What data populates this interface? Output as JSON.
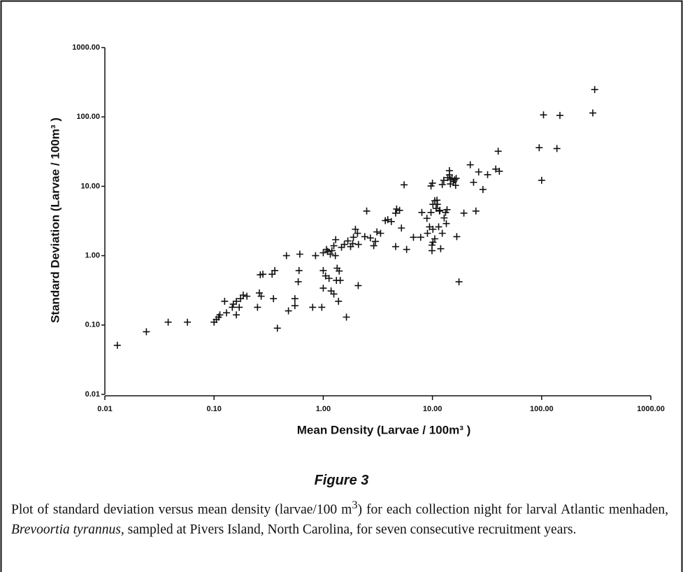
{
  "chart_data": {
    "type": "scatter",
    "x_label": "Mean Density (Larvae / 100m³ )",
    "y_label": "Standard Deviation (Larvae / 100m³ )",
    "xscale": "log",
    "yscale": "log",
    "xlim": [
      0.01,
      1000
    ],
    "ylim": [
      0.01,
      1000
    ],
    "xticks": [
      {
        "value": 0.01,
        "label": "0.01"
      },
      {
        "value": 0.1,
        "label": "0.10"
      },
      {
        "value": 1,
        "label": "1.00"
      },
      {
        "value": 10,
        "label": "10.00"
      },
      {
        "value": 100,
        "label": "100.00"
      },
      {
        "value": 1000,
        "label": "1000.00"
      }
    ],
    "yticks": [
      {
        "value": 0.01,
        "label": "0.01"
      },
      {
        "value": 0.1,
        "label": "0.10"
      },
      {
        "value": 1,
        "label": "1.00"
      },
      {
        "value": 10,
        "label": "10.00"
      },
      {
        "value": 100,
        "label": "100.00"
      },
      {
        "value": 1000,
        "label": "1000.00"
      }
    ],
    "color": "#111111",
    "x": [
      0.013,
      0.024,
      0.038,
      0.057,
      0.1,
      0.105,
      0.11,
      0.113,
      0.125,
      0.13,
      0.147,
      0.15,
      0.16,
      0.17,
      0.175,
      0.185,
      0.16,
      0.2,
      0.25,
      0.26,
      0.27,
      0.265,
      0.28,
      0.34,
      0.36,
      0.38,
      0.35,
      0.48,
      0.46,
      0.55,
      0.55,
      0.59,
      0.6,
      0.61,
      0.8,
      0.85,
      0.97,
      1.0,
      1.0,
      1.0,
      1.05,
      1.07,
      1.1,
      1.13,
      1.18,
      1.16,
      1.2,
      1.25,
      1.25,
      1.29,
      1.3,
      1.34,
      1.4,
      1.32,
      1.43,
      1.47,
      1.56,
      1.38,
      1.63,
      1.68,
      1.78,
      1.89,
      1.86,
      1.97,
      2.06,
      2.09,
      2.1,
      2.4,
      2.5,
      2.7,
      2.9,
      3.0,
      3.1,
      3.35,
      3.7,
      3.9,
      4.2,
      4.6,
      4.6,
      4.7,
      5.0,
      5.2,
      5.5,
      5.8,
      6.7,
      7.8,
      8.9,
      8.0,
      9.0,
      9.4,
      9.7,
      9.7,
      9.9,
      9.9,
      10,
      10.1,
      10.1,
      10.1,
      10.5,
      10.5,
      10.8,
      11,
      11.1,
      11.4,
      11.6,
      11.9,
      11.7,
      12.3,
      12.3,
      12.7,
      12.8,
      13.2,
      13.4,
      13.6,
      13.8,
      14.3,
      14.6,
      14.6,
      14.3,
      15.1,
      15.6,
      16.0,
      16.3,
      16.7,
      16.5,
      17.5,
      19.4,
      22.2,
      23.8,
      25,
      26.5,
      29,
      32,
      38,
      40,
      41,
      95,
      100,
      104,
      138,
      147,
      294,
      306
    ],
    "values": [
      0.051,
      0.08,
      0.11,
      0.11,
      0.11,
      0.12,
      0.13,
      0.14,
      0.22,
      0.15,
      0.18,
      0.2,
      0.22,
      0.18,
      0.24,
      0.27,
      0.14,
      0.26,
      0.18,
      0.29,
      0.26,
      0.53,
      0.54,
      0.54,
      0.61,
      0.09,
      0.24,
      0.16,
      1.0,
      0.19,
      0.24,
      0.42,
      0.61,
      1.05,
      0.18,
      1.0,
      0.18,
      1.1,
      0.61,
      0.34,
      0.51,
      1.23,
      1.15,
      0.47,
      0.31,
      1.05,
      1.18,
      1.39,
      0.28,
      1.0,
      1.7,
      0.66,
      0.6,
      0.44,
      0.44,
      1.32,
      1.45,
      0.22,
      0.13,
      1.63,
      1.35,
      1.84,
      1.49,
      2.4,
      2.1,
      0.37,
      1.45,
      1.88,
      4.4,
      1.8,
      1.39,
      1.6,
      2.2,
      2.1,
      3.2,
      3.3,
      3.1,
      4.1,
      1.35,
      4.7,
      4.5,
      2.5,
      10.5,
      1.23,
      1.84,
      1.84,
      3.45,
      4.2,
      2.1,
      2.6,
      4.2,
      10.1,
      1.18,
      1.42,
      11.1,
      5.5,
      2.4,
      1.56,
      1.75,
      6.2,
      4.8,
      6.3,
      5.5,
      2.6,
      4.4,
      1.26,
      4.5,
      2.1,
      10.6,
      12.2,
      3.5,
      4.2,
      2.9,
      4.6,
      13.3,
      14.6,
      12.4,
      10.8,
      16.8,
      13.0,
      11.6,
      12.4,
      10.3,
      1.88,
      13.0,
      0.42,
      4.1,
      20.4,
      11.4,
      4.4,
      16.1,
      9.0,
      14.7,
      17.7,
      32,
      16.5,
      36,
      12.2,
      107,
      35,
      105,
      114,
      248
    ]
  },
  "figure_label": "Figure 3",
  "caption": {
    "text_start": "Plot of standard deviation versus mean density (larvae/100 m",
    "superscript": "3",
    "text_middle": ") for each collection night for larval Atlantic menhaden, ",
    "species": "Brevoortia tyrannus,",
    "text_end": " sampled at Pivers Island, North Carolina, for seven consecutive recruitment years."
  }
}
